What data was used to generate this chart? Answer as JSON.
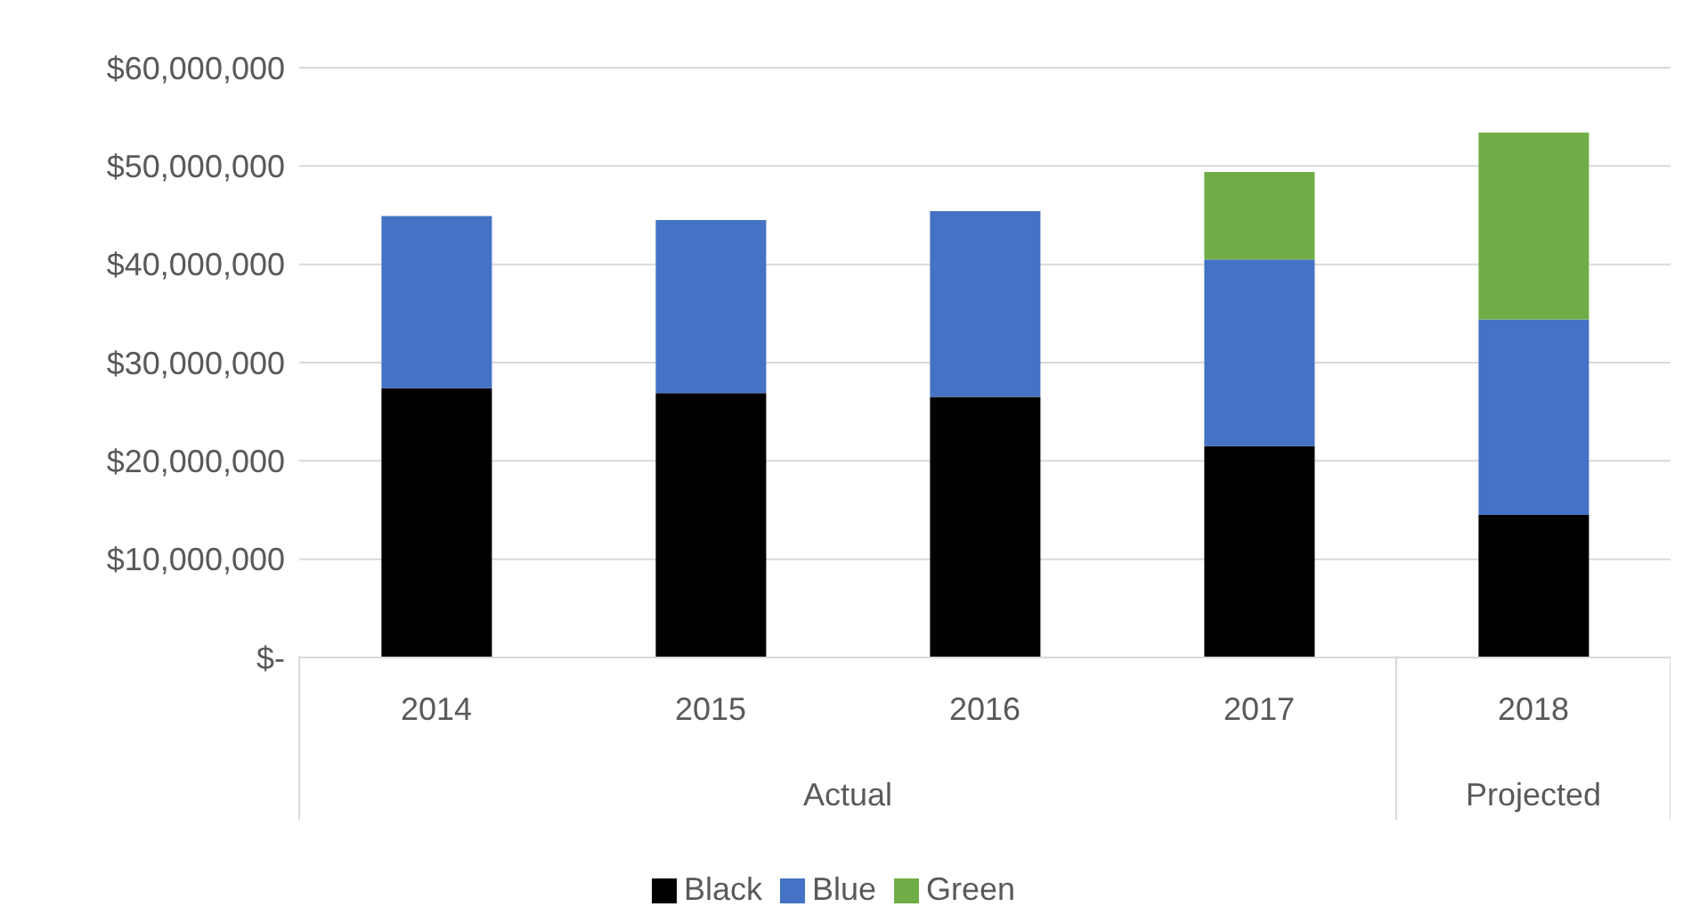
{
  "chart_data": {
    "type": "bar",
    "stacked": true,
    "categories": [
      "2014",
      "2015",
      "2016",
      "2017",
      "2018"
    ],
    "series": [
      {
        "name": "Black",
        "color": "#000000",
        "values": [
          27400000,
          26900000,
          26500000,
          21500000,
          14500000
        ]
      },
      {
        "name": "Blue",
        "color": "#4472c4",
        "values": [
          17500000,
          17600000,
          18900000,
          19000000,
          19900000
        ]
      },
      {
        "name": "Green",
        "color": "#70ad47",
        "values": [
          null,
          null,
          null,
          8900000,
          19000000
        ]
      }
    ],
    "ylim": [
      0,
      60000000
    ],
    "yticks": [
      {
        "value": 0,
        "label": "$-"
      },
      {
        "value": 10000000,
        "label": "$10,000,000"
      },
      {
        "value": 20000000,
        "label": "$20,000,000"
      },
      {
        "value": 30000000,
        "label": "$30,000,000"
      },
      {
        "value": 40000000,
        "label": "$40,000,000"
      },
      {
        "value": 50000000,
        "label": "$50,000,000"
      },
      {
        "value": 60000000,
        "label": "$60,000,000"
      }
    ],
    "annotations": [
      "Actual",
      "Projected"
    ],
    "grid": "y",
    "legend": "bottom"
  }
}
